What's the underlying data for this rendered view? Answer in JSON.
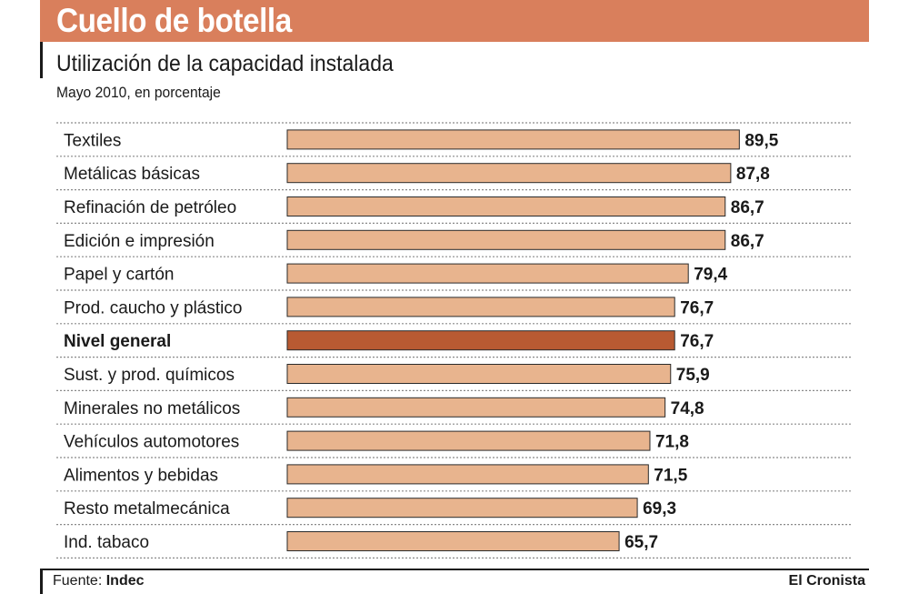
{
  "header": {
    "title": "Cuello de botella",
    "subtitle": "Utilización de la capacidad instalada",
    "subtitle2": "Mayo 2010, en porcentaje"
  },
  "footer": {
    "source_label": "Fuente:",
    "source_value": "Indec",
    "credit": "El Cronista"
  },
  "colors": {
    "banner": "#d97f5c",
    "bar": "#e8b48e",
    "bar_highlight": "#b85a32",
    "bar_outline": "#2a2a2a"
  },
  "chart_data": {
    "type": "bar",
    "orientation": "horizontal",
    "title": "Utilización de la capacidad instalada",
    "subtitle": "Mayo 2010, en porcentaje",
    "xlim": [
      0,
      100
    ],
    "grid": true,
    "categories": [
      "Textiles",
      "Metálicas básicas",
      "Refinación de petróleo",
      "Edición e impresión",
      "Papel y cartón",
      "Prod. caucho y plástico",
      "Nivel general",
      "Sust. y prod. químicos",
      "Minerales no metálicos",
      "Vehículos automotores",
      "Alimentos y bebidas",
      "Resto metalmecánica",
      "Ind. tabaco"
    ],
    "values": [
      89.5,
      87.8,
      86.7,
      86.7,
      79.4,
      76.7,
      76.7,
      75.9,
      74.8,
      71.8,
      71.5,
      69.3,
      65.7
    ],
    "value_labels": [
      "89,5",
      "87,8",
      "86,7",
      "86,7",
      "79,4",
      "76,7",
      "76,7",
      "75,9",
      "74,8",
      "71,8",
      "71,5",
      "69,3",
      "65,7"
    ],
    "highlight": "Nivel general"
  }
}
